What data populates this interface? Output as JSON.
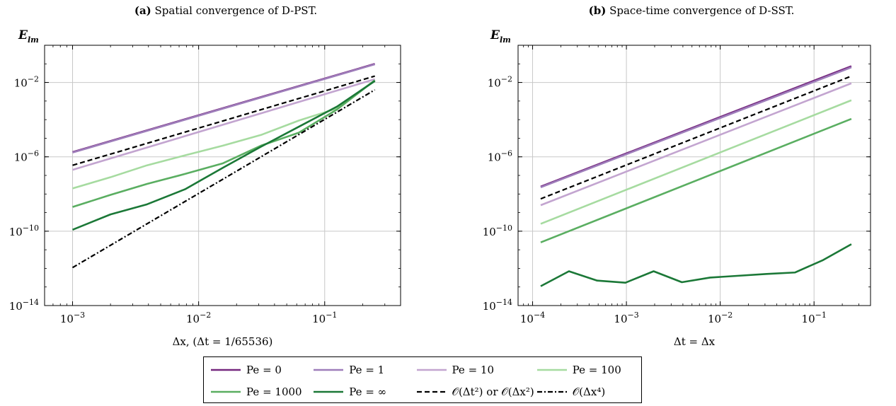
{
  "colors": {
    "pe0": "#76287f",
    "pe1": "#9e7dba",
    "pe10": "#c3a5d0",
    "pe100": "#a6dba0",
    "pe1000": "#5aae61",
    "peinf": "#1b7837",
    "ref2": "#000000",
    "ref4": "#000000"
  },
  "legend": [
    {
      "key": "pe0",
      "label": "Pe = 0",
      "style": "solid"
    },
    {
      "key": "pe1",
      "label": "Pe = 1",
      "style": "solid"
    },
    {
      "key": "pe10",
      "label": "Pe = 10",
      "style": "solid"
    },
    {
      "key": "pe100",
      "label": "Pe = 100",
      "style": "solid"
    },
    {
      "key": "pe1000",
      "label": "Pe = 1000",
      "style": "solid"
    },
    {
      "key": "peinf",
      "label": "Pe = ∞",
      "style": "solid"
    },
    {
      "key": "ref2",
      "label": "𝒪(Δt²) or 𝒪(Δx²)",
      "style": "dashed"
    },
    {
      "key": "ref4",
      "label": "𝒪(Δx⁴)",
      "style": "dashdot"
    }
  ],
  "chart_data": [
    {
      "type": "line",
      "panel_label": "(a)",
      "title": "Spatial convergence of D-PST.",
      "xlabel": "Δx, (Δt = 1/65536)",
      "ylabel": "E_lm",
      "xscale": "log",
      "yscale": "log",
      "xlim": [
        0.0006,
        0.4
      ],
      "ylim": [
        1e-14,
        1
      ],
      "xticks": [
        0.001,
        0.01,
        0.1
      ],
      "xtick_labels": [
        "10^-3",
        "10^-2",
        "10^-1"
      ],
      "yticks": [
        1e-14,
        1e-10,
        1e-06,
        0.01
      ],
      "ytick_labels": [
        "10^-14",
        "10^-10",
        "10^-6",
        "10^-2"
      ],
      "grid": true,
      "series": [
        {
          "key": "pe0",
          "name": "Pe = 0",
          "x": [
            0.001,
            0.25
          ],
          "y": [
            1.8e-06,
            0.1
          ]
        },
        {
          "key": "pe1",
          "name": "Pe = 1",
          "x": [
            0.001,
            0.25
          ],
          "y": [
            1.7e-06,
            0.095
          ]
        },
        {
          "key": "pe10",
          "name": "Pe = 10",
          "x": [
            0.001,
            0.25
          ],
          "y": [
            2e-07,
            0.015
          ]
        },
        {
          "key": "pe100",
          "name": "Pe = 100",
          "x": [
            0.001,
            0.002,
            0.0039,
            0.0078,
            0.0156,
            0.03125,
            0.0625,
            0.125,
            0.25
          ],
          "y": [
            2e-08,
            8e-08,
            3.5e-07,
            1.2e-06,
            4e-06,
            1.5e-05,
            9e-05,
            0.0004,
            0.013
          ]
        },
        {
          "key": "pe1000",
          "name": "Pe = 1000",
          "x": [
            0.001,
            0.002,
            0.0039,
            0.0078,
            0.0156,
            0.03125,
            0.0625,
            0.125,
            0.25
          ],
          "y": [
            2e-09,
            9e-09,
            3.5e-08,
            1.2e-07,
            4.5e-07,
            4e-06,
            2e-05,
            0.00035,
            0.013
          ]
        },
        {
          "key": "peinf",
          "name": "Pe = ∞",
          "x": [
            0.001,
            0.002,
            0.0039,
            0.0078,
            0.0156,
            0.03125,
            0.0625,
            0.125,
            0.25
          ],
          "y": [
            1.2e-10,
            8e-10,
            2.8e-09,
            1.8e-08,
            2.6e-07,
            3.5e-06,
            4.2e-05,
            0.0005,
            0.012
          ]
        },
        {
          "key": "ref2",
          "name": "𝒪(Δt²) or 𝒪(Δx²)",
          "x": [
            0.001,
            0.25
          ],
          "y": [
            3.5e-07,
            0.022
          ]
        },
        {
          "key": "ref4",
          "name": "𝒪(Δx⁴)",
          "x": [
            0.001,
            0.25
          ],
          "y": [
            1.1e-12,
            0.004
          ]
        }
      ]
    },
    {
      "type": "line",
      "panel_label": "(b)",
      "title": "Space-time convergence of D-SST.",
      "xlabel": "Δt = Δx",
      "ylabel": "E_lm",
      "xscale": "log",
      "yscale": "log",
      "xlim": [
        7e-05,
        0.4
      ],
      "ylim": [
        1e-14,
        1
      ],
      "xticks": [
        0.0001,
        0.001,
        0.01,
        0.1
      ],
      "xtick_labels": [
        "10^-4",
        "10^-3",
        "10^-2",
        "10^-1"
      ],
      "yticks": [
        1e-14,
        1e-10,
        1e-06,
        0.01
      ],
      "ytick_labels": [
        "10^-14",
        "10^-10",
        "10^-6",
        "10^-2"
      ],
      "grid": true,
      "series": [
        {
          "key": "pe0",
          "name": "Pe = 0",
          "x": [
            0.000122,
            0.25
          ],
          "y": [
            2.5e-08,
            0.075
          ]
        },
        {
          "key": "pe1",
          "name": "Pe = 1",
          "x": [
            0.000122,
            0.25
          ],
          "y": [
            2.3e-08,
            0.065
          ]
        },
        {
          "key": "pe10",
          "name": "Pe = 10",
          "x": [
            0.000122,
            0.25
          ],
          "y": [
            2.5e-09,
            0.009
          ]
        },
        {
          "key": "pe100",
          "name": "Pe = 100",
          "x": [
            0.000122,
            0.25
          ],
          "y": [
            2.5e-10,
            0.0011
          ]
        },
        {
          "key": "pe1000",
          "name": "Pe = 1000",
          "x": [
            0.000122,
            0.25
          ],
          "y": [
            2.5e-11,
            0.00011
          ]
        },
        {
          "key": "peinf",
          "name": "Pe = ∞",
          "x": [
            0.000122,
            0.000244,
            0.000488,
            0.000977,
            0.00195,
            0.0039,
            0.0078,
            0.0156,
            0.03125,
            0.0625,
            0.125,
            0.25
          ],
          "y": [
            1.1e-13,
            7e-13,
            2.2e-13,
            1.7e-13,
            7e-13,
            1.8e-13,
            3.2e-13,
            4e-13,
            5e-13,
            6e-13,
            2.8e-12,
            2e-11
          ]
        },
        {
          "key": "ref2",
          "name": "𝒪(Δt²) or 𝒪(Δx²)",
          "x": [
            0.000122,
            0.25
          ],
          "y": [
            5.5e-09,
            0.022
          ]
        }
      ]
    }
  ]
}
